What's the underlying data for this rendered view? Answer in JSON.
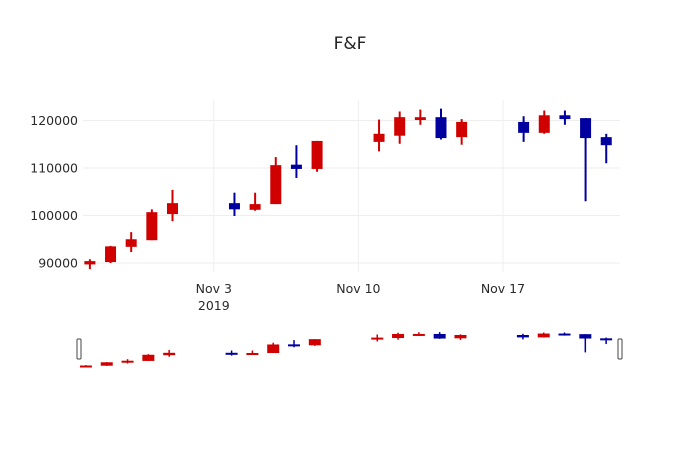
{
  "chart_data": {
    "type": "candlestick",
    "title": "F&F",
    "xlabel": "",
    "ylabel": "",
    "ylim": [
      88000,
      124500
    ],
    "y_ticks": [
      90000,
      100000,
      110000,
      120000
    ],
    "x_ticks": [
      {
        "date": "2019-11-03",
        "label": "Nov 3",
        "sublabel": "2019"
      },
      {
        "date": "2019-11-10",
        "label": "Nov 10",
        "sublabel": ""
      },
      {
        "date": "2019-11-17",
        "label": "Nov 17",
        "sublabel": ""
      }
    ],
    "xlim": [
      "2019-10-27T16:00",
      "2019-11-22T16:00"
    ],
    "increasing_color": "#d10000",
    "decreasing_color": "#00009f",
    "grid": true,
    "rangeslider": true,
    "series": [
      {
        "date": "2019-10-28",
        "open": 89700,
        "high": 90800,
        "low": 88700,
        "close": 90400
      },
      {
        "date": "2019-10-29",
        "open": 90200,
        "high": 93600,
        "low": 90000,
        "close": 93500
      },
      {
        "date": "2019-10-30",
        "open": 93400,
        "high": 96500,
        "low": 92300,
        "close": 95000
      },
      {
        "date": "2019-10-31",
        "open": 94800,
        "high": 101300,
        "low": 94800,
        "close": 100700
      },
      {
        "date": "2019-11-01",
        "open": 100300,
        "high": 105400,
        "low": 98800,
        "close": 102600
      },
      {
        "date": "2019-11-04",
        "open": 102600,
        "high": 104800,
        "low": 99900,
        "close": 101300
      },
      {
        "date": "2019-11-05",
        "open": 101200,
        "high": 104800,
        "low": 101000,
        "close": 102400
      },
      {
        "date": "2019-11-06",
        "open": 102400,
        "high": 112300,
        "low": 102400,
        "close": 110600
      },
      {
        "date": "2019-11-07",
        "open": 110700,
        "high": 114800,
        "low": 107900,
        "close": 109800
      },
      {
        "date": "2019-11-08",
        "open": 109800,
        "high": 115700,
        "low": 109200,
        "close": 115700
      },
      {
        "date": "2019-11-11",
        "open": 115500,
        "high": 120200,
        "low": 113500,
        "close": 117200
      },
      {
        "date": "2019-11-12",
        "open": 116800,
        "high": 121900,
        "low": 115100,
        "close": 120700
      },
      {
        "date": "2019-11-13",
        "open": 120100,
        "high": 122300,
        "low": 119100,
        "close": 120700
      },
      {
        "date": "2019-11-14",
        "open": 120700,
        "high": 122500,
        "low": 116000,
        "close": 116300
      },
      {
        "date": "2019-11-15",
        "open": 116500,
        "high": 120300,
        "low": 114900,
        "close": 119700
      },
      {
        "date": "2019-11-18",
        "open": 119700,
        "high": 120900,
        "low": 115500,
        "close": 117400
      },
      {
        "date": "2019-11-19",
        "open": 117400,
        "high": 122100,
        "low": 117200,
        "close": 121100
      },
      {
        "date": "2019-11-20",
        "open": 121100,
        "high": 122100,
        "low": 119100,
        "close": 120300
      },
      {
        "date": "2019-11-21",
        "open": 120500,
        "high": 120500,
        "low": 103000,
        "close": 116300
      },
      {
        "date": "2019-11-22",
        "open": 116500,
        "high": 117200,
        "low": 111000,
        "close": 114800
      }
    ]
  }
}
